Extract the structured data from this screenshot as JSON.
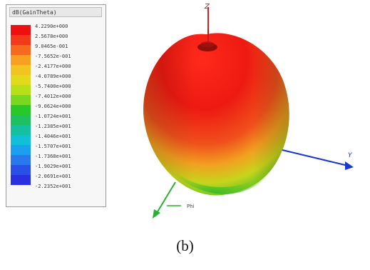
{
  "legend": {
    "title": "dB(GainTheta)",
    "values": [
      "4.2290e+000",
      "2.5678e+000",
      "9.0465e-001",
      "-7.5652e-001",
      "-2.4177e+000",
      "-4.0789e+000",
      "-5.7400e+000",
      "-7.4012e+000",
      "-9.0624e+000",
      "-1.0724e+001",
      "-1.2385e+001",
      "-1.4046e+001",
      "-1.5707e+001",
      "-1.7368e+001",
      "-1.9029e+001",
      "-2.0691e+001",
      "-2.2352e+001"
    ],
    "colors": [
      "#ee1010",
      "#f23a18",
      "#f66a1e",
      "#f8a020",
      "#f2c420",
      "#e2d81c",
      "#b8e01a",
      "#78d820",
      "#28c828",
      "#20c060",
      "#14c0a0",
      "#10c0d8",
      "#1aa0ee",
      "#2a78ee",
      "#2a50e8",
      "#2a30e0"
    ]
  },
  "axes": {
    "z_label": "Z",
    "y_label": "Y",
    "x_label": "Phi"
  },
  "caption": "(b)"
}
